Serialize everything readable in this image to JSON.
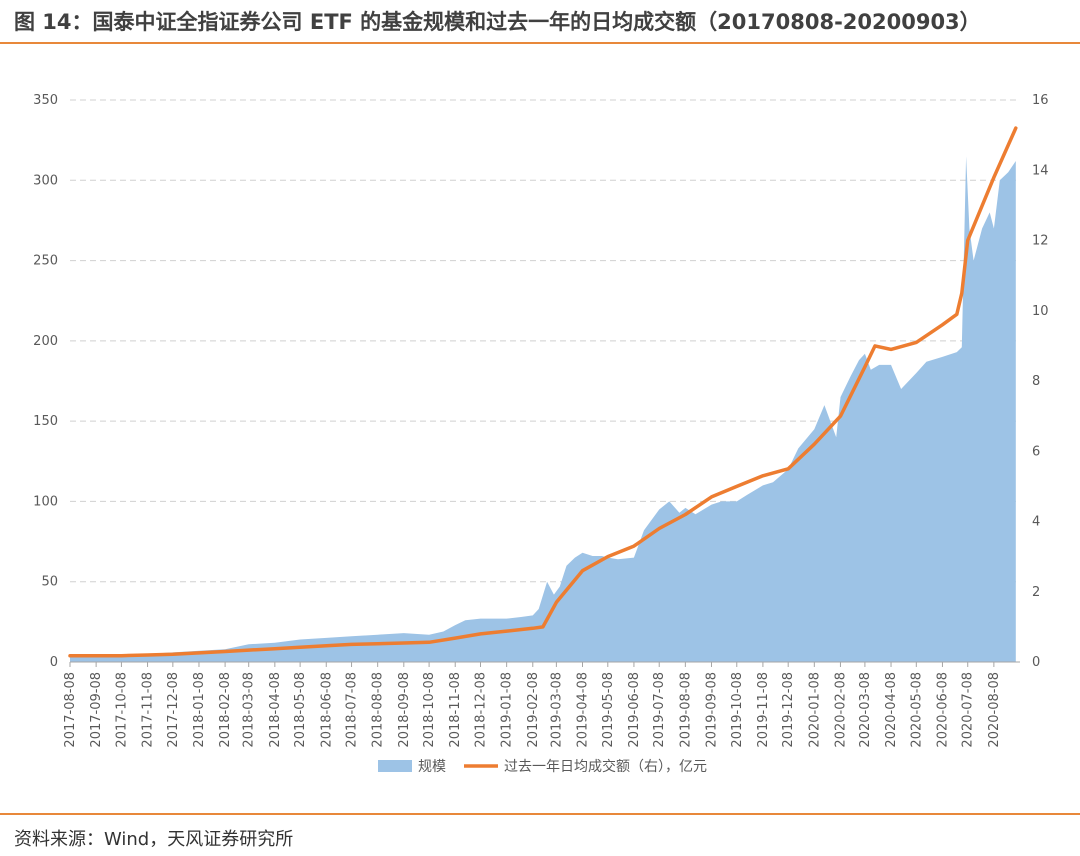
{
  "title": "图 14：国泰中证全指证券公司 ETF 的基金规模和过去一年的日均成交额（20170808-20200903）",
  "source": "资料来源：Wind，天风证券研究所",
  "colors": {
    "accent": "#E8883A",
    "area": "#9DC3E6",
    "line": "#ED7D31",
    "grid": "#D0D0D0"
  },
  "chart_data": {
    "type": "area",
    "x_ticks": [
      "2017-08-08",
      "2017-09-08",
      "2017-10-08",
      "2017-11-08",
      "2017-12-08",
      "2018-01-08",
      "2018-02-08",
      "2018-03-08",
      "2018-04-08",
      "2018-05-08",
      "2018-06-08",
      "2018-07-08",
      "2018-08-08",
      "2018-09-08",
      "2018-10-08",
      "2018-11-08",
      "2018-12-08",
      "2019-01-08",
      "2019-02-08",
      "2019-03-08",
      "2019-04-08",
      "2019-05-08",
      "2019-06-08",
      "2019-07-08",
      "2019-08-08",
      "2019-09-08",
      "2019-10-08",
      "2019-11-08",
      "2019-12-08",
      "2020-01-08",
      "2020-02-08",
      "2020-03-08",
      "2020-04-08",
      "2020-05-08",
      "2020-06-08",
      "2020-07-08",
      "2020-08-08"
    ],
    "y_left": {
      "min": 0,
      "max": 350,
      "ticks": [
        0,
        50,
        100,
        150,
        200,
        250,
        300,
        350
      ]
    },
    "y_right": {
      "min": 0,
      "max": 16,
      "ticks": [
        0,
        2,
        4,
        6,
        8,
        10,
        12,
        14,
        16
      ]
    },
    "grid": true,
    "legend_position": "bottom",
    "series": [
      {
        "name": "规模",
        "type": "area",
        "axis": "left",
        "x": [
          "2017-08-08",
          "2017-09-08",
          "2017-10-08",
          "2017-11-08",
          "2017-12-08",
          "2018-01-08",
          "2018-02-08",
          "2018-03-08",
          "2018-04-08",
          "2018-05-08",
          "2018-06-08",
          "2018-07-08",
          "2018-08-08",
          "2018-09-08",
          "2018-10-08",
          "2018-10-25",
          "2018-11-08",
          "2018-11-20",
          "2018-12-08",
          "2019-01-08",
          "2019-01-25",
          "2019-02-08",
          "2019-02-15",
          "2019-02-25",
          "2019-03-05",
          "2019-03-12",
          "2019-03-20",
          "2019-03-30",
          "2019-04-08",
          "2019-04-20",
          "2019-05-01",
          "2019-05-08",
          "2019-05-20",
          "2019-06-08",
          "2019-06-20",
          "2019-07-08",
          "2019-07-20",
          "2019-08-01",
          "2019-08-08",
          "2019-08-20",
          "2019-09-08",
          "2019-09-20",
          "2019-10-08",
          "2019-10-20",
          "2019-11-08",
          "2019-11-20",
          "2019-12-08",
          "2019-12-20",
          "2020-01-08",
          "2020-01-20",
          "2020-02-03",
          "2020-02-08",
          "2020-02-20",
          "2020-03-01",
          "2020-03-08",
          "2020-03-15",
          "2020-03-25",
          "2020-04-08",
          "2020-04-20",
          "2020-05-08",
          "2020-05-20",
          "2020-06-08",
          "2020-06-25",
          "2020-07-01",
          "2020-07-06",
          "2020-07-10",
          "2020-07-15",
          "2020-07-25",
          "2020-08-03",
          "2020-08-08",
          "2020-08-15",
          "2020-08-25",
          "2020-09-03"
        ],
        "values": [
          4,
          4,
          4,
          5,
          6,
          7,
          8,
          11,
          12,
          14,
          15,
          16,
          17,
          18,
          17,
          19,
          23,
          26,
          27,
          27,
          28,
          29,
          33,
          50,
          42,
          47,
          60,
          65,
          68,
          66,
          66,
          65,
          64,
          65,
          82,
          95,
          100,
          93,
          96,
          92,
          98,
          100,
          100,
          104,
          110,
          112,
          120,
          133,
          145,
          160,
          140,
          165,
          178,
          188,
          192,
          182,
          185,
          185,
          170,
          180,
          187,
          190,
          193,
          196,
          315,
          270,
          250,
          270,
          280,
          270,
          300,
          305,
          312
        ]
      },
      {
        "name": "过去一年日均成交额（右），亿元",
        "type": "line",
        "axis": "right",
        "x": [
          "2017-08-08",
          "2017-09-08",
          "2017-10-08",
          "2017-11-08",
          "2017-12-08",
          "2018-01-08",
          "2018-02-08",
          "2018-03-08",
          "2018-04-08",
          "2018-05-08",
          "2018-06-08",
          "2018-07-08",
          "2018-08-08",
          "2018-09-08",
          "2018-10-08",
          "2018-11-08",
          "2018-12-08",
          "2019-01-08",
          "2019-02-08",
          "2019-02-20",
          "2019-03-08",
          "2019-04-08",
          "2019-05-08",
          "2019-06-08",
          "2019-07-08",
          "2019-08-08",
          "2019-09-08",
          "2019-10-08",
          "2019-11-08",
          "2019-12-08",
          "2020-01-08",
          "2020-02-08",
          "2020-03-08",
          "2020-03-20",
          "2020-04-08",
          "2020-05-08",
          "2020-06-08",
          "2020-06-25",
          "2020-07-01",
          "2020-07-08",
          "2020-08-08",
          "2020-09-03"
        ],
        "values": [
          0.18,
          0.18,
          0.18,
          0.2,
          0.22,
          0.26,
          0.3,
          0.34,
          0.38,
          0.42,
          0.46,
          0.5,
          0.52,
          0.54,
          0.56,
          0.68,
          0.8,
          0.88,
          0.96,
          1.0,
          1.7,
          2.6,
          3.0,
          3.3,
          3.8,
          4.2,
          4.7,
          5.0,
          5.3,
          5.5,
          6.2,
          7.0,
          8.4,
          9.0,
          8.9,
          9.1,
          9.6,
          9.9,
          10.5,
          12.0,
          13.8,
          15.2
        ]
      }
    ]
  }
}
